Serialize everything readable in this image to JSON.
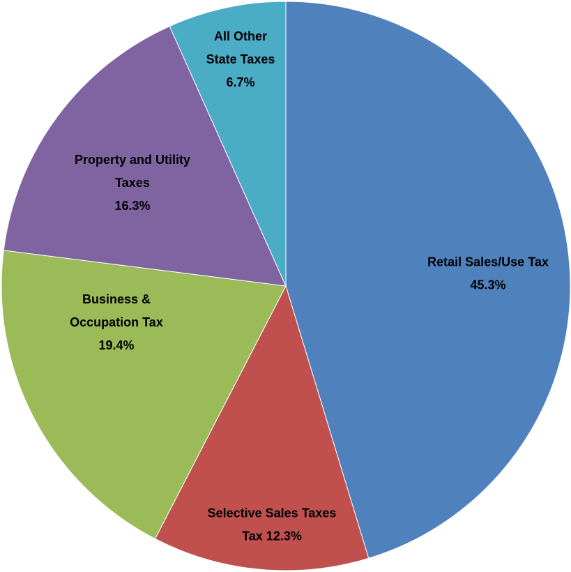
{
  "chart_data": {
    "type": "pie",
    "categories": [
      [
        "Retail Sales/Use Tax"
      ],
      [
        "Selective Sales Taxes"
      ],
      [
        "Business &",
        "Occupation Tax"
      ],
      [
        "Property and Utility",
        "Taxes"
      ],
      [
        "All Other",
        "State Taxes"
      ]
    ],
    "values": [
      45.3,
      12.3,
      19.4,
      16.3,
      6.7
    ],
    "value_labels": [
      "45.3%",
      "Tax 12.3%",
      "19.4%",
      "16.3%",
      "6.7%"
    ],
    "colors": [
      "#4f81bd",
      "#c0504d",
      "#9bbb59",
      "#8064a2",
      "#4bacc6"
    ]
  }
}
